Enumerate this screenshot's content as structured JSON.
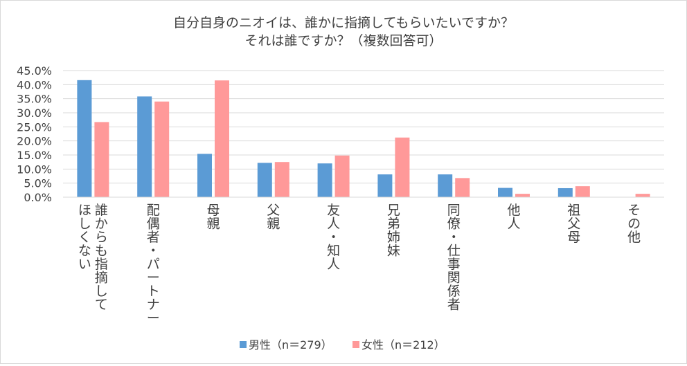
{
  "chart_data": {
    "type": "bar",
    "title": [
      "自分自身のニオイは、誰かに指摘してもらいたいですか？",
      "それは誰ですか？（複数回答可）"
    ],
    "xlabel": "",
    "ylabel": "",
    "ylim": [
      0,
      45
    ],
    "yticks": [
      "0.0%",
      "5.0%",
      "10.0%",
      "15.0%",
      "20.0%",
      "25.0%",
      "30.0%",
      "35.0%",
      "40.0%",
      "45.0%"
    ],
    "ytick_values": [
      0,
      5,
      10,
      15,
      20,
      25,
      30,
      35,
      40,
      45
    ],
    "grid": true,
    "legend_position": "bottom",
    "categories": [
      [
        "誰からも指摘して",
        "ほしくない"
      ],
      [
        "配偶者・パートナー"
      ],
      [
        "母親"
      ],
      [
        "父親"
      ],
      [
        "友人・知人"
      ],
      [
        "兄弟姉妹"
      ],
      [
        "同僚・仕事関係者"
      ],
      [
        "他人"
      ],
      [
        "祖父母"
      ],
      [
        "その他"
      ]
    ],
    "series": [
      {
        "name": "男性（n＝279）",
        "color": "#5b9bd5",
        "values": [
          41.6,
          35.8,
          15.4,
          12.2,
          12.0,
          8.1,
          8.1,
          3.3,
          3.2,
          0.0
        ]
      },
      {
        "name": "女性（n＝212）",
        "color": "#ff9999",
        "values": [
          26.7,
          34.0,
          41.5,
          12.5,
          14.8,
          21.2,
          6.8,
          1.2,
          3.9,
          1.2
        ]
      }
    ],
    "grid_color": "#d9d9d9",
    "text_color": "#404040"
  }
}
